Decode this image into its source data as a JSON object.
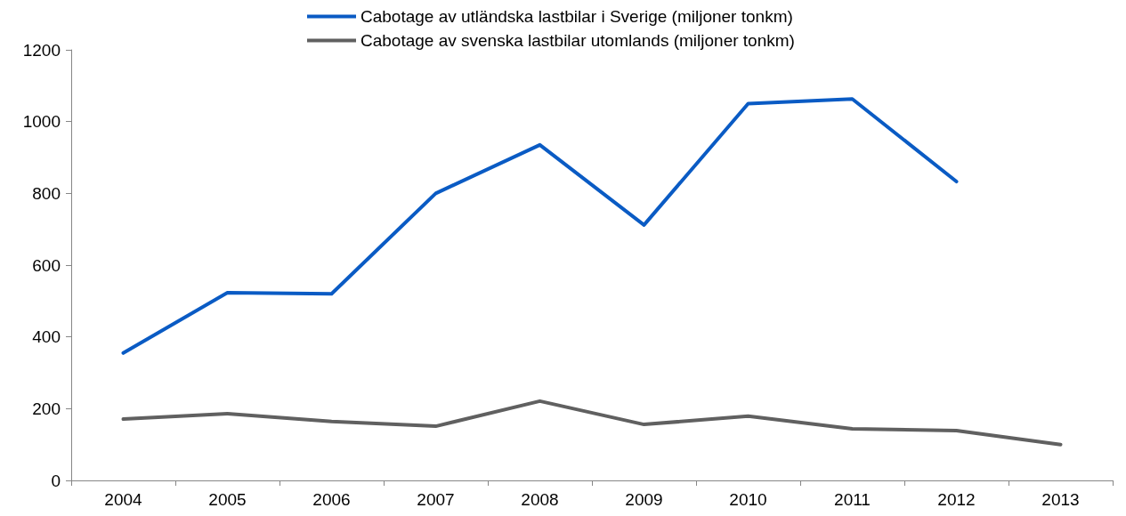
{
  "chart_data": {
    "type": "line",
    "categories": [
      "2004",
      "2005",
      "2006",
      "2007",
      "2008",
      "2009",
      "2010",
      "2011",
      "2012",
      "2013"
    ],
    "series": [
      {
        "name": "Cabotage av utländska lastbilar i Sverige (miljoner tonkm)",
        "color": "#0a5bc4",
        "values": [
          355,
          523,
          520,
          800,
          935,
          712,
          1050,
          1063,
          833,
          null
        ]
      },
      {
        "name": "Cabotage av svenska lastbilar utomlands (miljoner tonkm)",
        "color": "#606060",
        "values": [
          171,
          186,
          164,
          151,
          221,
          156,
          179,
          144,
          139,
          100
        ]
      }
    ],
    "ylim": [
      0,
      1200
    ],
    "yticks": [
      0,
      200,
      400,
      600,
      800,
      1000,
      1200
    ],
    "grid": false,
    "legend": "top",
    "marker": "none",
    "line_style": "solid"
  }
}
